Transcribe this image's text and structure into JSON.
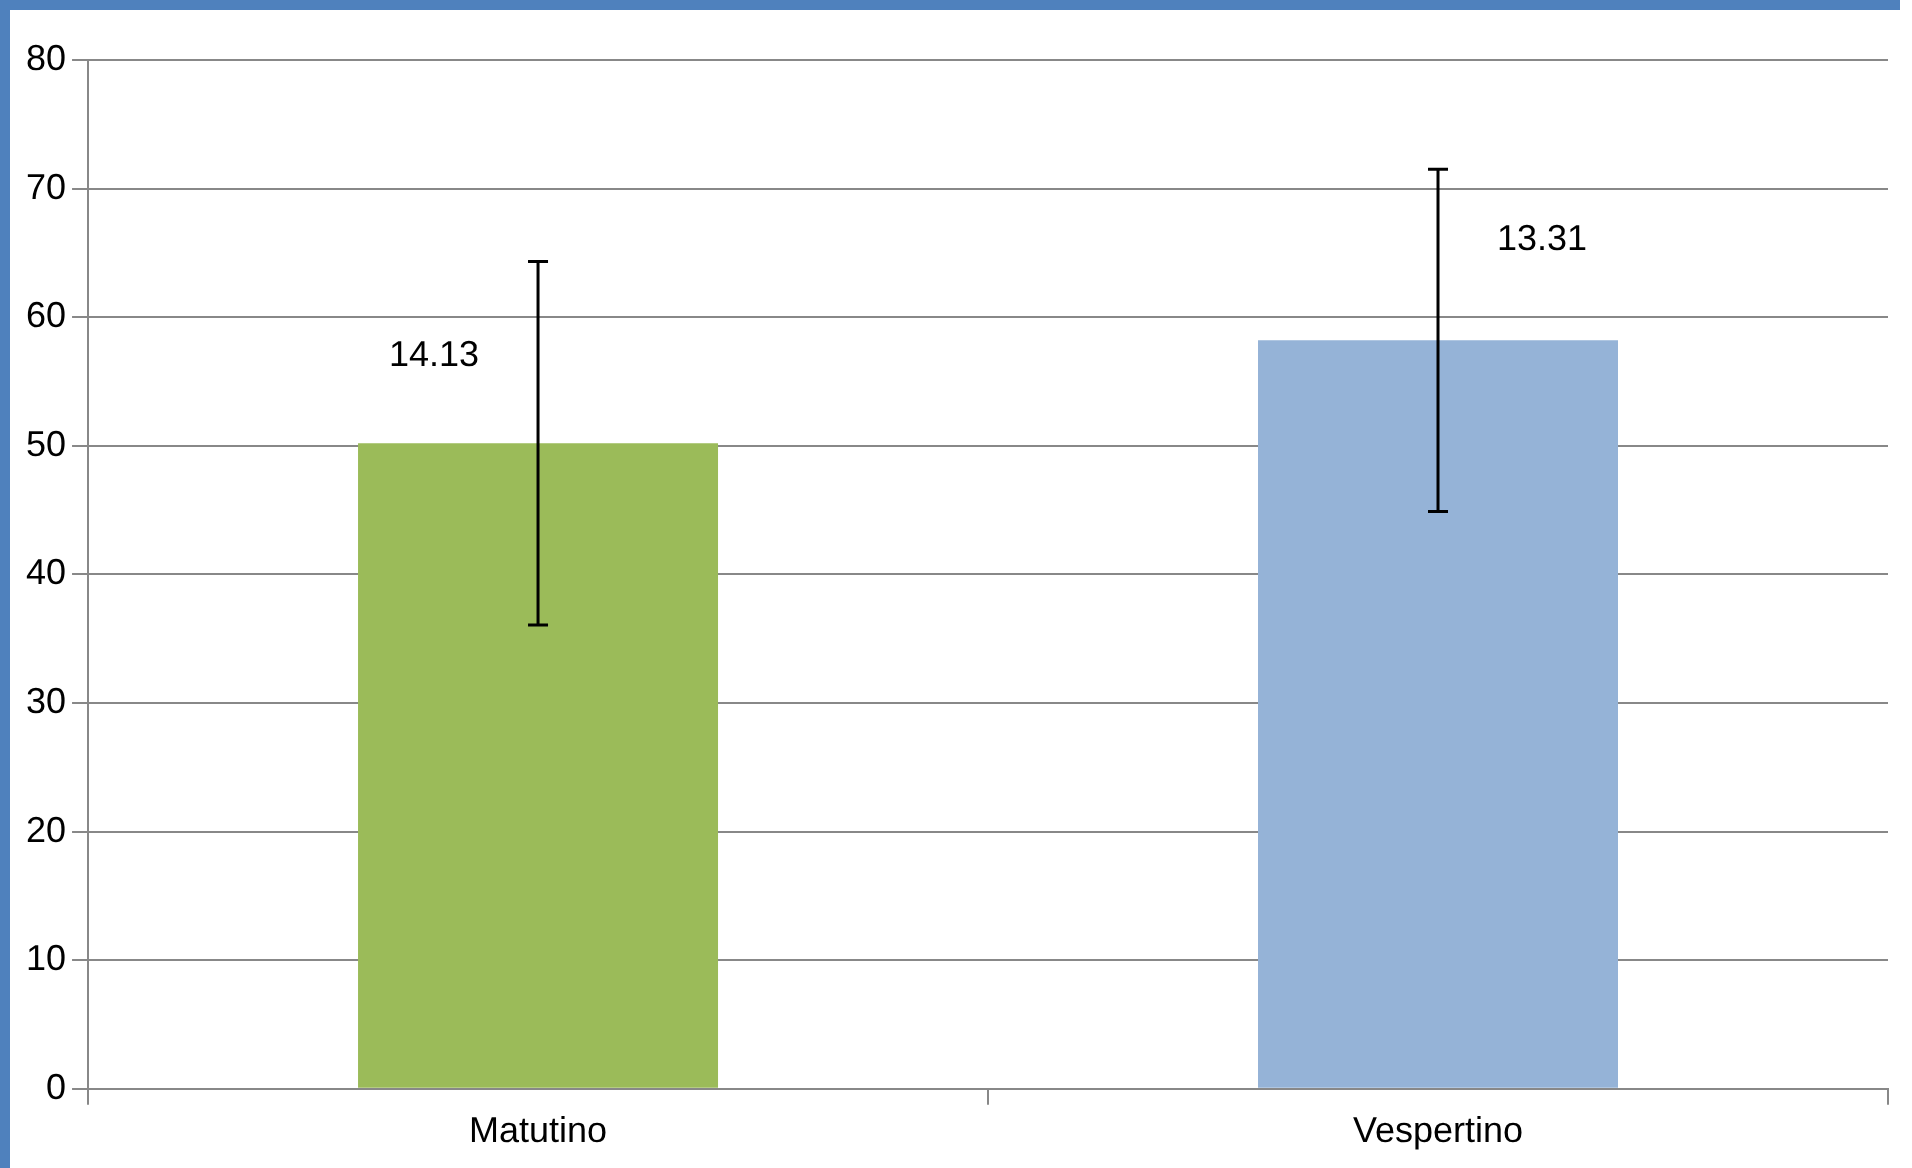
{
  "chart_data": {
    "type": "bar",
    "categories": [
      "Matutino",
      "Vespertino"
    ],
    "values": [
      50.2,
      58.2
    ],
    "colors": [
      "#9bbb59",
      "#95b3d7"
    ],
    "errors": [
      14.13,
      13.31
    ],
    "annotations": [
      {
        "text": "14.13",
        "x": "Matutino",
        "y": 57
      },
      {
        "text": "13.31",
        "x": "Vespertino",
        "y": 66
      }
    ],
    "ylim": [
      0,
      80
    ],
    "yticks": [
      0,
      10,
      20,
      30,
      40,
      50,
      60,
      70,
      80
    ],
    "grid": "y",
    "legend": false
  }
}
